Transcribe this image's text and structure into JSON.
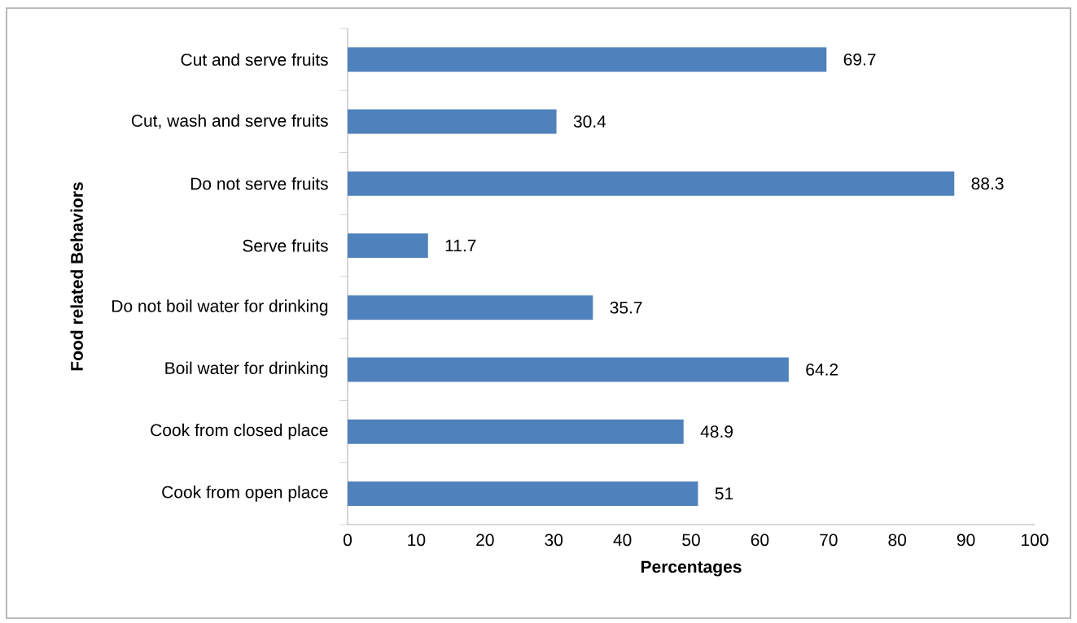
{
  "chart_data": {
    "type": "bar",
    "orientation": "horizontal",
    "xlabel": "Percentages",
    "ylabel": "Food related Behaviors",
    "categories": [
      "Cut and serve fruits",
      "Cut, wash and serve fruits",
      "Do not serve fruits",
      "Serve fruits",
      "Do not boil water for drinking",
      "Boil water for drinking",
      "Cook from closed place",
      "Cook from open place"
    ],
    "values": [
      69.7,
      30.4,
      88.3,
      11.7,
      35.7,
      64.2,
      48.9,
      51
    ],
    "color": "#4f81bd",
    "data_labels": true,
    "xlim": [
      0,
      100
    ],
    "xticks": [
      0,
      10,
      20,
      30,
      40,
      50,
      60,
      70,
      80,
      90,
      100
    ]
  }
}
